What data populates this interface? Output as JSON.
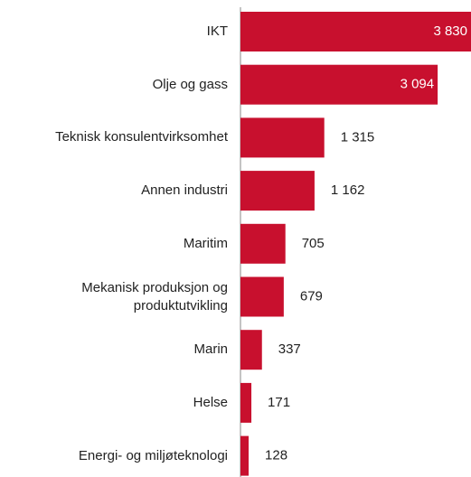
{
  "chart_data": {
    "type": "bar",
    "orientation": "horizontal",
    "color": "#c8102e",
    "categories": [
      "IKT",
      "Olje og gass",
      "Teknisk konsulentvirksomhet",
      "Annen industri",
      "Maritim",
      "Mekanisk produksjon og produktutvikling",
      "Marin",
      "Helse",
      "Energi- og miljøteknologi"
    ],
    "values": [
      3830,
      3094,
      1315,
      1162,
      705,
      679,
      337,
      171,
      128
    ],
    "value_labels": [
      "3 830",
      "3 094",
      "1 315",
      "1 162",
      "705",
      "679",
      "337",
      "171",
      "128"
    ]
  }
}
